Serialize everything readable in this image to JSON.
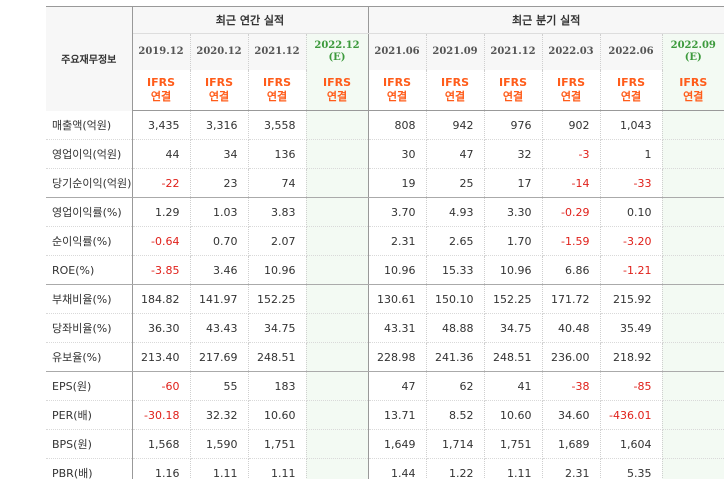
{
  "header": {
    "label": "주요재무정보",
    "annual_title": "최근 연간 실적",
    "quarterly_title": "최근 분기 실적",
    "ifrs_top": "IFRS",
    "ifrs_bottom": "연결",
    "annual_periods": [
      {
        "period": "2019.12",
        "est": ""
      },
      {
        "period": "2020.12",
        "est": ""
      },
      {
        "period": "2021.12",
        "est": ""
      },
      {
        "period": "2022.12",
        "est": "(E)"
      }
    ],
    "quarterly_periods": [
      {
        "period": "2021.06",
        "est": ""
      },
      {
        "period": "2021.09",
        "est": ""
      },
      {
        "period": "2021.12",
        "est": ""
      },
      {
        "period": "2022.03",
        "est": ""
      },
      {
        "period": "2022.06",
        "est": ""
      },
      {
        "period": "2022.09",
        "est": "(E)"
      }
    ]
  },
  "rows": [
    {
      "label": "매출액(억원)",
      "annual": [
        "3,435",
        "3,316",
        "3,558",
        ""
      ],
      "quarterly": [
        "808",
        "942",
        "976",
        "902",
        "1,043",
        ""
      ]
    },
    {
      "label": "영업이익(억원)",
      "annual": [
        "44",
        "34",
        "136",
        ""
      ],
      "quarterly": [
        "30",
        "47",
        "32",
        "-3",
        "1",
        ""
      ]
    },
    {
      "label": "당기순이익(억원)",
      "annual": [
        "-22",
        "23",
        "74",
        ""
      ],
      "quarterly": [
        "19",
        "25",
        "17",
        "-14",
        "-33",
        ""
      ]
    },
    {
      "label": "영업이익률(%)",
      "annual": [
        "1.29",
        "1.03",
        "3.83",
        ""
      ],
      "quarterly": [
        "3.70",
        "4.93",
        "3.30",
        "-0.29",
        "0.10",
        ""
      ]
    },
    {
      "label": "순이익률(%)",
      "annual": [
        "-0.64",
        "0.70",
        "2.07",
        ""
      ],
      "quarterly": [
        "2.31",
        "2.65",
        "1.70",
        "-1.59",
        "-3.20",
        ""
      ]
    },
    {
      "label": "ROE(%)",
      "annual": [
        "-3.85",
        "3.46",
        "10.96",
        ""
      ],
      "quarterly": [
        "10.96",
        "15.33",
        "10.96",
        "6.86",
        "-1.21",
        ""
      ]
    },
    {
      "label": "부채비율(%)",
      "annual": [
        "184.82",
        "141.97",
        "152.25",
        ""
      ],
      "quarterly": [
        "130.61",
        "150.10",
        "152.25",
        "171.72",
        "215.92",
        ""
      ]
    },
    {
      "label": "당좌비율(%)",
      "annual": [
        "36.30",
        "43.43",
        "34.75",
        ""
      ],
      "quarterly": [
        "43.31",
        "48.88",
        "34.75",
        "40.48",
        "35.49",
        ""
      ]
    },
    {
      "label": "유보율(%)",
      "annual": [
        "213.40",
        "217.69",
        "248.51",
        ""
      ],
      "quarterly": [
        "228.98",
        "241.36",
        "248.51",
        "236.00",
        "218.92",
        ""
      ]
    },
    {
      "label": "EPS(원)",
      "annual": [
        "-60",
        "55",
        "183",
        ""
      ],
      "quarterly": [
        "47",
        "62",
        "41",
        "-38",
        "-85",
        ""
      ]
    },
    {
      "label": "PER(배)",
      "annual": [
        "-30.18",
        "32.32",
        "10.60",
        ""
      ],
      "quarterly": [
        "13.71",
        "8.52",
        "10.60",
        "34.60",
        "-436.01",
        ""
      ]
    },
    {
      "label": "BPS(원)",
      "annual": [
        "1,568",
        "1,590",
        "1,751",
        ""
      ],
      "quarterly": [
        "1,649",
        "1,714",
        "1,751",
        "1,689",
        "1,604",
        ""
      ]
    },
    {
      "label": "PBR(배)",
      "annual": [
        "1.16",
        "1.11",
        "1.11",
        ""
      ],
      "quarterly": [
        "1.44",
        "1.22",
        "1.11",
        "2.31",
        "5.35",
        ""
      ]
    }
  ],
  "colors": {
    "negative": "#e0201a",
    "ifrs": "#ff5c1a",
    "estimate_bg": "#f3faf3",
    "estimate_text": "#3c9a3c"
  }
}
